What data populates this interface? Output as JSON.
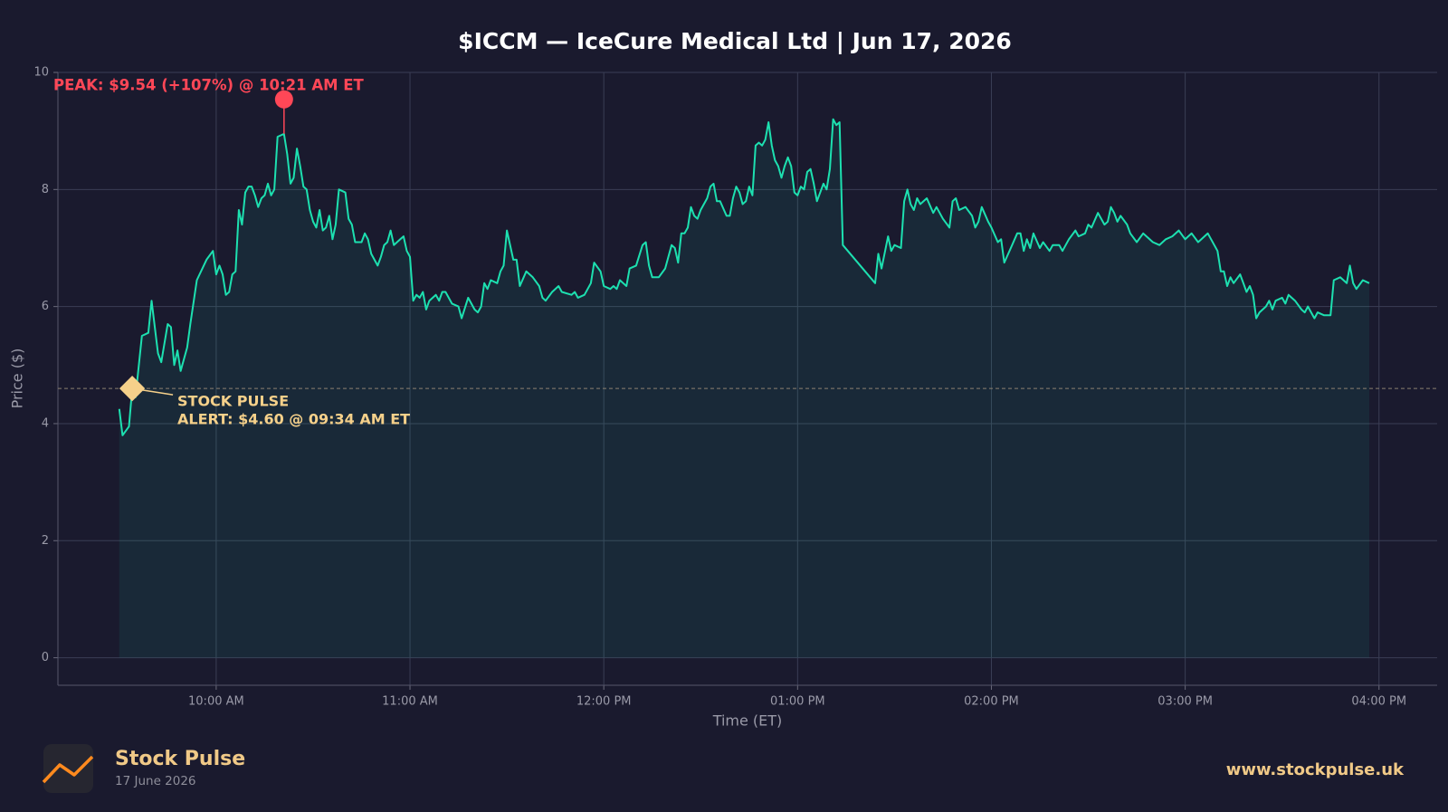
{
  "chart_data": {
    "type": "line",
    "title": "$ICCM — IceCure Medical Ltd  |  Jun 17, 2026",
    "x_label": "Time (ET)",
    "y_label": "Price ($)",
    "color": "#1de0b0",
    "grid": true,
    "xlim": [
      "09:11 AM",
      "04:18 PM"
    ],
    "xticks": [
      "10:00 AM",
      "11:00 AM",
      "12:00 PM",
      "01:00 PM",
      "02:00 PM",
      "03:00 PM",
      "04:00 PM"
    ],
    "ylim": [
      -0.47,
      10
    ],
    "yticks": [
      0,
      2,
      4,
      6,
      8,
      10
    ],
    "x": [
      "09:30 AM",
      "09:31 AM",
      "09:33 AM",
      "09:34 AM",
      "09:35 AM",
      "09:37 AM",
      "09:39 AM",
      "09:40 AM",
      "09:42 AM",
      "09:43 AM",
      "09:45 AM",
      "09:46 AM",
      "09:47 AM",
      "09:48 AM",
      "09:49 AM",
      "09:51 AM",
      "09:52 AM",
      "09:54 AM",
      "09:57 AM",
      "09:59 AM",
      "10:00 AM",
      "10:01 AM",
      "10:02 AM",
      "10:03 AM",
      "10:04 AM",
      "10:05 AM",
      "10:06 AM",
      "10:07 AM",
      "10:08 AM",
      "10:09 AM",
      "10:10 AM",
      "10:11 AM",
      "10:12 AM",
      "10:13 AM",
      "10:14 AM",
      "10:15 AM",
      "10:16 AM",
      "10:17 AM",
      "10:18 AM",
      "10:19 AM",
      "10:21 AM",
      "10:22 AM",
      "10:23 AM",
      "10:24 AM",
      "10:25 AM",
      "10:26 AM",
      "10:27 AM",
      "10:28 AM",
      "10:29 AM",
      "10:30 AM",
      "10:31 AM",
      "10:32 AM",
      "10:33 AM",
      "10:34 AM",
      "10:35 AM",
      "10:36 AM",
      "10:37 AM",
      "10:38 AM",
      "10:40 AM",
      "10:41 AM",
      "10:42 AM",
      "10:43 AM",
      "10:45 AM",
      "10:46 AM",
      "10:47 AM",
      "10:48 AM",
      "10:50 AM",
      "10:51 AM",
      "10:52 AM",
      "10:53 AM",
      "10:54 AM",
      "10:55 AM",
      "10:57 AM",
      "10:58 AM",
      "10:59 AM",
      "11:00 AM",
      "11:01 AM",
      "11:02 AM",
      "11:03 AM",
      "11:04 AM",
      "11:05 AM",
      "11:06 AM",
      "11:08 AM",
      "11:09 AM",
      "11:10 AM",
      "11:11 AM",
      "11:13 AM",
      "11:15 AM",
      "11:16 AM",
      "11:18 AM",
      "11:20 AM",
      "11:21 AM",
      "11:22 AM",
      "11:23 AM",
      "11:24 AM",
      "11:25 AM",
      "11:27 AM",
      "11:28 AM",
      "11:29 AM",
      "11:30 AM",
      "11:32 AM",
      "11:33 AM",
      "11:34 AM",
      "11:36 AM",
      "11:38 AM",
      "11:40 AM",
      "11:41 AM",
      "11:42 AM",
      "11:44 AM",
      "11:46 AM",
      "11:47 AM",
      "11:50 AM",
      "11:51 AM",
      "11:52 AM",
      "11:54 AM",
      "11:56 AM",
      "11:57 AM",
      "11:59 AM",
      "12:00 PM",
      "12:02 PM",
      "12:03 PM",
      "12:04 PM",
      "12:05 PM",
      "12:06 PM",
      "12:07 PM",
      "12:08 PM",
      "12:10 PM",
      "12:12 PM",
      "12:13 PM",
      "12:14 PM",
      "12:15 PM",
      "12:17 PM",
      "12:19 PM",
      "12:21 PM",
      "12:22 PM",
      "12:23 PM",
      "12:24 PM",
      "12:25 PM",
      "12:26 PM",
      "12:27 PM",
      "12:28 PM",
      "12:29 PM",
      "12:30 PM",
      "12:31 PM",
      "12:32 PM",
      "12:33 PM",
      "12:34 PM",
      "12:35 PM",
      "12:36 PM",
      "12:38 PM",
      "12:39 PM",
      "12:40 PM",
      "12:41 PM",
      "12:42 PM",
      "12:43 PM",
      "12:44 PM",
      "12:45 PM",
      "12:46 PM",
      "12:47 PM",
      "12:48 PM",
      "12:49 PM",
      "12:50 PM",
      "12:51 PM",
      "12:52 PM",
      "12:53 PM",
      "12:54 PM",
      "12:55 PM",
      "12:56 PM",
      "12:57 PM",
      "12:58 PM",
      "12:59 PM",
      "01:00 PM",
      "01:01 PM",
      "01:02 PM",
      "01:03 PM",
      "01:04 PM",
      "01:05 PM",
      "01:06 PM",
      "01:08 PM",
      "01:09 PM",
      "01:10 PM",
      "01:11 PM",
      "01:12 PM",
      "01:13 PM",
      "01:14 PM",
      "01:24 PM",
      "01:25 PM",
      "01:26 PM",
      "01:28 PM",
      "01:29 PM",
      "01:30 PM",
      "01:32 PM",
      "01:33 PM",
      "01:34 PM",
      "01:35 PM",
      "01:36 PM",
      "01:37 PM",
      "01:38 PM",
      "01:40 PM",
      "01:42 PM",
      "01:43 PM",
      "01:45 PM",
      "01:47 PM",
      "01:48 PM",
      "01:49 PM",
      "01:50 PM",
      "01:52 PM",
      "01:54 PM",
      "01:55 PM",
      "01:56 PM",
      "01:57 PM",
      "01:59 PM",
      "02:00 PM",
      "02:02 PM",
      "02:03 PM",
      "02:04 PM",
      "02:06 PM",
      "02:08 PM",
      "02:09 PM",
      "02:10 PM",
      "02:11 PM",
      "02:12 PM",
      "02:13 PM",
      "02:15 PM",
      "02:16 PM",
      "02:18 PM",
      "02:19 PM",
      "02:21 PM",
      "02:22 PM",
      "02:24 PM",
      "02:26 PM",
      "02:27 PM",
      "02:29 PM",
      "02:30 PM",
      "02:31 PM",
      "02:33 PM",
      "02:35 PM",
      "02:36 PM",
      "02:37 PM",
      "02:38 PM",
      "02:39 PM",
      "02:40 PM",
      "02:42 PM",
      "02:43 PM",
      "02:45 PM",
      "02:47 PM",
      "02:48 PM",
      "02:50 PM",
      "02:52 PM",
      "02:54 PM",
      "02:56 PM",
      "02:58 PM",
      "03:00 PM",
      "03:02 PM",
      "03:04 PM",
      "03:05 PM",
      "03:07 PM",
      "03:08 PM",
      "03:10 PM",
      "03:11 PM",
      "03:12 PM",
      "03:13 PM",
      "03:14 PM",
      "03:15 PM",
      "03:17 PM",
      "03:18 PM",
      "03:19 PM",
      "03:20 PM",
      "03:21 PM",
      "03:22 PM",
      "03:23 PM",
      "03:25 PM",
      "03:26 PM",
      "03:27 PM",
      "03:28 PM",
      "03:30 PM",
      "03:31 PM",
      "03:32 PM",
      "03:34 PM",
      "03:36 PM",
      "03:37 PM",
      "03:38 PM",
      "03:40 PM",
      "03:41 PM",
      "03:43 PM",
      "03:45 PM",
      "03:46 PM",
      "03:48 PM",
      "03:50 PM",
      "03:51 PM",
      "03:52 PM",
      "03:53 PM",
      "03:55 PM",
      "03:57 PM"
    ],
    "values": [
      4.25,
      3.8,
      3.95,
      4.6,
      4.45,
      5.5,
      5.55,
      6.1,
      5.2,
      5.05,
      5.7,
      5.65,
      5.0,
      5.25,
      4.9,
      5.3,
      5.7,
      6.45,
      6.8,
      6.95,
      6.55,
      6.7,
      6.55,
      6.2,
      6.25,
      6.55,
      6.6,
      7.65,
      7.4,
      7.95,
      8.05,
      8.05,
      7.9,
      7.7,
      7.85,
      7.9,
      8.1,
      7.9,
      8.0,
      8.9,
      8.95,
      8.6,
      8.1,
      8.2,
      8.7,
      8.4,
      8.05,
      8.0,
      7.65,
      7.45,
      7.35,
      7.65,
      7.3,
      7.35,
      7.55,
      7.15,
      7.4,
      8.0,
      7.95,
      7.5,
      7.4,
      7.1,
      7.1,
      7.25,
      7.15,
      6.9,
      6.7,
      6.85,
      7.05,
      7.1,
      7.3,
      7.05,
      7.15,
      7.2,
      6.95,
      6.85,
      6.1,
      6.2,
      6.15,
      6.25,
      5.95,
      6.1,
      6.2,
      6.1,
      6.25,
      6.25,
      6.05,
      6.0,
      5.8,
      6.15,
      5.95,
      5.9,
      6.0,
      6.4,
      6.3,
      6.45,
      6.4,
      6.6,
      6.7,
      7.3,
      6.8,
      6.8,
      6.35,
      6.6,
      6.5,
      6.35,
      6.15,
      6.1,
      6.25,
      6.35,
      6.25,
      6.2,
      6.25,
      6.15,
      6.2,
      6.4,
      6.75,
      6.6,
      6.35,
      6.3,
      6.35,
      6.3,
      6.45,
      6.4,
      6.35,
      6.65,
      6.7,
      7.05,
      7.1,
      6.7,
      6.5,
      6.5,
      6.65,
      7.05,
      7.0,
      6.75,
      7.25,
      7.25,
      7.35,
      7.7,
      7.55,
      7.5,
      7.65,
      7.75,
      7.85,
      8.05,
      8.1,
      7.8,
      7.8,
      7.55,
      7.55,
      7.85,
      8.05,
      7.95,
      7.75,
      7.8,
      8.05,
      7.9,
      8.75,
      8.8,
      8.75,
      8.85,
      9.15,
      8.75,
      8.5,
      8.4,
      8.2,
      8.4,
      8.55,
      8.4,
      7.95,
      7.9,
      8.05,
      8.0,
      8.3,
      8.35,
      8.1,
      7.8,
      8.1,
      8.0,
      8.35,
      9.2,
      9.1,
      9.15,
      7.05,
      6.4,
      6.9,
      6.65,
      7.2,
      6.95,
      7.05,
      7.0,
      7.8,
      8.0,
      7.75,
      7.65,
      7.85,
      7.75,
      7.85,
      7.6,
      7.7,
      7.5,
      7.35,
      7.8,
      7.85,
      7.65,
      7.7,
      7.55,
      7.35,
      7.45,
      7.7,
      7.45,
      7.35,
      7.1,
      7.15,
      6.75,
      7.0,
      7.25,
      7.25,
      6.95,
      7.15,
      7.0,
      7.25,
      7.0,
      7.1,
      6.95,
      7.05,
      7.05,
      6.95,
      7.15,
      7.3,
      7.2,
      7.25,
      7.4,
      7.35,
      7.6,
      7.4,
      7.45,
      7.7,
      7.6,
      7.45,
      7.55,
      7.4,
      7.25,
      7.1,
      7.25,
      7.2,
      7.1,
      7.05,
      7.15,
      7.2,
      7.3,
      7.15,
      7.25,
      7.1,
      7.15,
      7.25,
      7.15,
      6.95,
      6.6,
      6.6,
      6.35,
      6.5,
      6.4,
      6.55,
      6.4,
      6.25,
      6.35,
      6.2,
      5.8,
      5.9,
      6.0,
      6.1,
      5.95,
      6.1,
      6.15,
      6.05,
      6.2,
      6.1,
      5.95,
      5.9,
      6.0,
      5.8,
      5.9,
      5.85,
      5.85,
      6.45,
      6.5,
      6.4,
      6.7,
      6.4,
      6.3,
      6.45,
      6.4
    ],
    "peak": {
      "label": "PEAK: $9.54 (+107%) @ 10:21 AM ET",
      "x": "10:21 AM",
      "value": 9.54,
      "color": "#ff4757"
    },
    "alert": {
      "x": "09:34 AM",
      "value": 4.6,
      "lines": [
        "STOCK PULSE",
        "ALERT: $4.60 @ 09:34 AM ET"
      ],
      "color": "#f5d08a"
    }
  },
  "footer": {
    "brand": "Stock Pulse",
    "date": "17 June 2026",
    "url": "www.stockpulse.uk"
  }
}
